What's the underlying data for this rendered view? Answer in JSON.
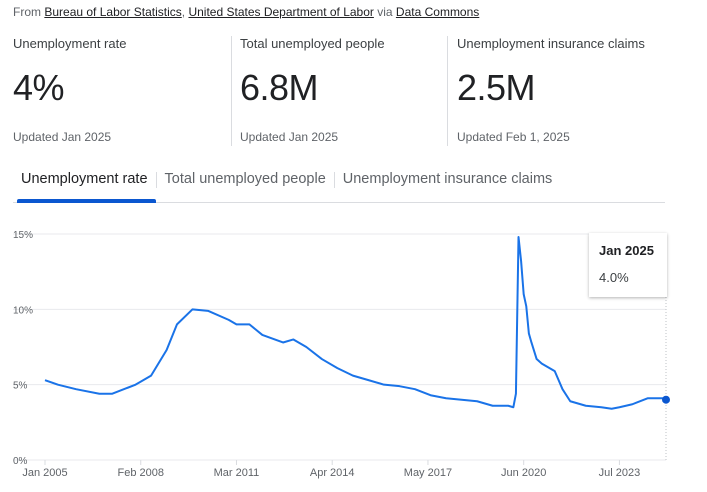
{
  "source": {
    "prefix": "From",
    "link1": "Bureau of Labor Statistics",
    "comma": ",",
    "link2": "United States Department of Labor",
    "via": "via",
    "link3": "Data Commons"
  },
  "stats": [
    {
      "label": "Unemployment rate",
      "value": "4%",
      "updated": "Updated Jan 2025"
    },
    {
      "label": "Total unemployed people",
      "value": "6.8M",
      "updated": "Updated Jan 2025"
    },
    {
      "label": "Unemployment insurance claims",
      "value": "2.5M",
      "updated": "Updated Feb 1, 2025"
    }
  ],
  "tabs": [
    "Unemployment rate",
    "Total unemployed people",
    "Unemployment insurance claims"
  ],
  "tooltip": {
    "date": "Jan 2025",
    "value": "4.0%"
  },
  "colors": {
    "line": "#1a73e8",
    "accent": "#0b57d0"
  },
  "chart_data": {
    "type": "line",
    "title": "Unemployment rate",
    "xlabel": "",
    "ylabel": "",
    "ylim": [
      0,
      15
    ],
    "y_ticks": [
      "0%",
      "5%",
      "10%",
      "15%"
    ],
    "y_tick_values": [
      0,
      5,
      10,
      15
    ],
    "x_ticks": [
      "Jan 2005",
      "Feb 2008",
      "Mar 2011",
      "Apr 2014",
      "May 2017",
      "Jun 2020",
      "Jul 2023"
    ],
    "x_tick_months": [
      0,
      37,
      74,
      111,
      148,
      185,
      222
    ],
    "grid": true,
    "series": [
      {
        "name": "Unemployment rate (%)",
        "points": [
          [
            "2005-01",
            5.3
          ],
          [
            "2005-06",
            5.0
          ],
          [
            "2006-01",
            4.7
          ],
          [
            "2006-10",
            4.4
          ],
          [
            "2007-03",
            4.4
          ],
          [
            "2007-12",
            5.0
          ],
          [
            "2008-06",
            5.6
          ],
          [
            "2008-12",
            7.3
          ],
          [
            "2009-04",
            9.0
          ],
          [
            "2009-10",
            10.0
          ],
          [
            "2010-04",
            9.9
          ],
          [
            "2010-12",
            9.3
          ],
          [
            "2011-03",
            9.0
          ],
          [
            "2011-08",
            9.0
          ],
          [
            "2012-01",
            8.3
          ],
          [
            "2012-09",
            7.8
          ],
          [
            "2013-01",
            8.0
          ],
          [
            "2013-06",
            7.5
          ],
          [
            "2013-12",
            6.7
          ],
          [
            "2014-06",
            6.1
          ],
          [
            "2014-12",
            5.6
          ],
          [
            "2015-06",
            5.3
          ],
          [
            "2015-12",
            5.0
          ],
          [
            "2016-06",
            4.9
          ],
          [
            "2016-12",
            4.7
          ],
          [
            "2017-06",
            4.3
          ],
          [
            "2017-12",
            4.1
          ],
          [
            "2018-06",
            4.0
          ],
          [
            "2018-12",
            3.9
          ],
          [
            "2019-06",
            3.6
          ],
          [
            "2019-12",
            3.6
          ],
          [
            "2020-02",
            3.5
          ],
          [
            "2020-03",
            4.4
          ],
          [
            "2020-04",
            14.8
          ],
          [
            "2020-05",
            13.2
          ],
          [
            "2020-06",
            11.0
          ],
          [
            "2020-07",
            10.2
          ],
          [
            "2020-08",
            8.4
          ],
          [
            "2020-09",
            7.8
          ],
          [
            "2020-11",
            6.7
          ],
          [
            "2021-01",
            6.4
          ],
          [
            "2021-06",
            5.9
          ],
          [
            "2021-09",
            4.7
          ],
          [
            "2021-12",
            3.9
          ],
          [
            "2022-06",
            3.6
          ],
          [
            "2022-12",
            3.5
          ],
          [
            "2023-04",
            3.4
          ],
          [
            "2023-07",
            3.5
          ],
          [
            "2023-12",
            3.7
          ],
          [
            "2024-06",
            4.1
          ],
          [
            "2024-09",
            4.1
          ],
          [
            "2024-12",
            4.1
          ],
          [
            "2025-01",
            4.0
          ]
        ]
      }
    ]
  }
}
